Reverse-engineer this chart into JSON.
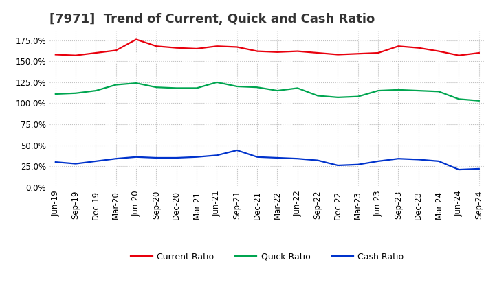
{
  "title": "[7971]  Trend of Current, Quick and Cash Ratio",
  "labels": [
    "Jun-19",
    "Sep-19",
    "Dec-19",
    "Mar-20",
    "Jun-20",
    "Sep-20",
    "Dec-20",
    "Mar-21",
    "Jun-21",
    "Sep-21",
    "Dec-21",
    "Mar-22",
    "Jun-22",
    "Sep-22",
    "Dec-22",
    "Mar-23",
    "Jun-23",
    "Sep-23",
    "Dec-23",
    "Mar-24",
    "Jun-24",
    "Sep-24"
  ],
  "current_ratio": [
    158,
    157,
    160,
    163,
    176,
    168,
    166,
    165,
    168,
    167,
    162,
    161,
    162,
    160,
    158,
    159,
    160,
    168,
    166,
    162,
    157,
    160
  ],
  "quick_ratio": [
    111,
    112,
    115,
    122,
    124,
    119,
    118,
    118,
    125,
    120,
    119,
    115,
    118,
    109,
    107,
    108,
    115,
    116,
    115,
    114,
    105,
    103
  ],
  "cash_ratio": [
    30,
    28,
    31,
    34,
    36,
    35,
    35,
    36,
    38,
    44,
    36,
    35,
    34,
    32,
    26,
    27,
    31,
    34,
    33,
    31,
    21,
    22
  ],
  "current_color": "#e8000d",
  "quick_color": "#00a550",
  "cash_color": "#0033cc",
  "background_color": "#ffffff",
  "plot_bg_color": "#ffffff",
  "ylim": [
    0,
    187
  ],
  "yticks": [
    0,
    25,
    50,
    75,
    100,
    125,
    150,
    175
  ],
  "grid_color": "#bbbbbb",
  "line_width": 1.6,
  "title_fontsize": 13,
  "legend_fontsize": 9,
  "tick_fontsize": 8.5
}
